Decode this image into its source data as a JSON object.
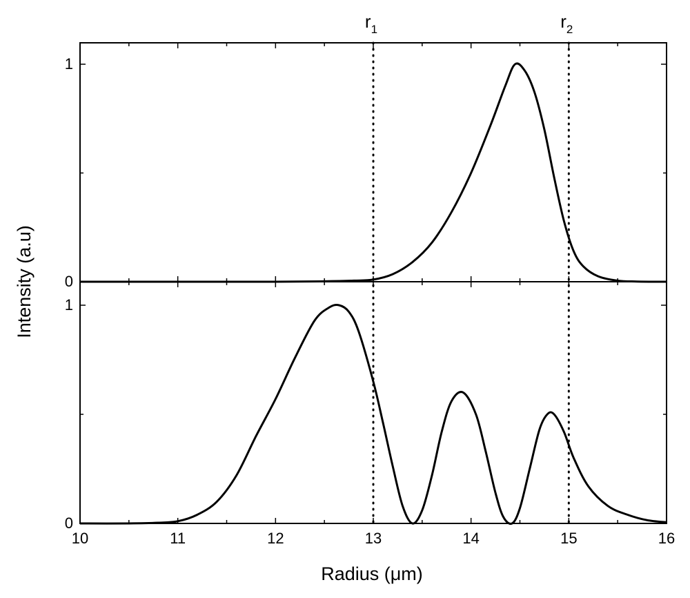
{
  "chart_data": {
    "type": "line",
    "xlabel": "Radius (μm)",
    "ylabel": "Intensity (a.u)",
    "xlim": [
      10,
      16
    ],
    "x_ticks": [
      "10",
      "11",
      "12",
      "13",
      "14",
      "15",
      "16"
    ],
    "grid": false,
    "markers": [
      {
        "base": "r",
        "sub": "1",
        "x": 13.0,
        "style": "dotted"
      },
      {
        "base": "r",
        "sub": "2",
        "x": 15.0,
        "style": "dotted"
      }
    ],
    "panels": [
      {
        "position": "top",
        "ylim": [
          0,
          1.1
        ],
        "y_ticks": [
          "0",
          "1"
        ],
        "series": [
          {
            "x": [
              10.0,
              11.0,
              12.0,
              12.5,
              12.8,
              13.0,
              13.2,
              13.4,
              13.6,
              13.8,
              14.0,
              14.2,
              14.35,
              14.45,
              14.55,
              14.65,
              14.75,
              14.85,
              14.95,
              15.05,
              15.15,
              15.3,
              15.5,
              15.7,
              16.0
            ],
            "y": [
              0,
              0,
              0,
              0.002,
              0.005,
              0.01,
              0.035,
              0.09,
              0.18,
              0.32,
              0.5,
              0.72,
              0.9,
              1.0,
              0.97,
              0.87,
              0.7,
              0.48,
              0.28,
              0.14,
              0.07,
              0.025,
              0.005,
              0.001,
              0
            ]
          }
        ]
      },
      {
        "position": "bottom",
        "ylim": [
          0,
          1.0
        ],
        "y_ticks": [
          "0",
          "1"
        ],
        "series": [
          {
            "x": [
              10.0,
              10.5,
              10.8,
              11.0,
              11.2,
              11.4,
              11.6,
              11.8,
              12.0,
              12.2,
              12.4,
              12.55,
              12.65,
              12.75,
              12.85,
              13.0,
              13.1,
              13.2,
              13.3,
              13.4,
              13.5,
              13.6,
              13.7,
              13.8,
              13.92,
              14.05,
              14.15,
              14.25,
              14.33,
              14.42,
              14.5,
              14.6,
              14.7,
              14.78,
              14.85,
              14.95,
              15.05,
              15.2,
              15.4,
              15.6,
              15.8,
              16.0
            ],
            "y": [
              0,
              0,
              0.003,
              0.01,
              0.04,
              0.1,
              0.22,
              0.4,
              0.57,
              0.76,
              0.93,
              0.99,
              1.0,
              0.97,
              0.88,
              0.65,
              0.46,
              0.26,
              0.08,
              0.0,
              0.06,
              0.22,
              0.42,
              0.56,
              0.6,
              0.5,
              0.33,
              0.14,
              0.03,
              0.0,
              0.07,
              0.25,
              0.43,
              0.5,
              0.5,
              0.42,
              0.3,
              0.17,
              0.08,
              0.04,
              0.015,
              0.005
            ]
          }
        ]
      }
    ]
  }
}
